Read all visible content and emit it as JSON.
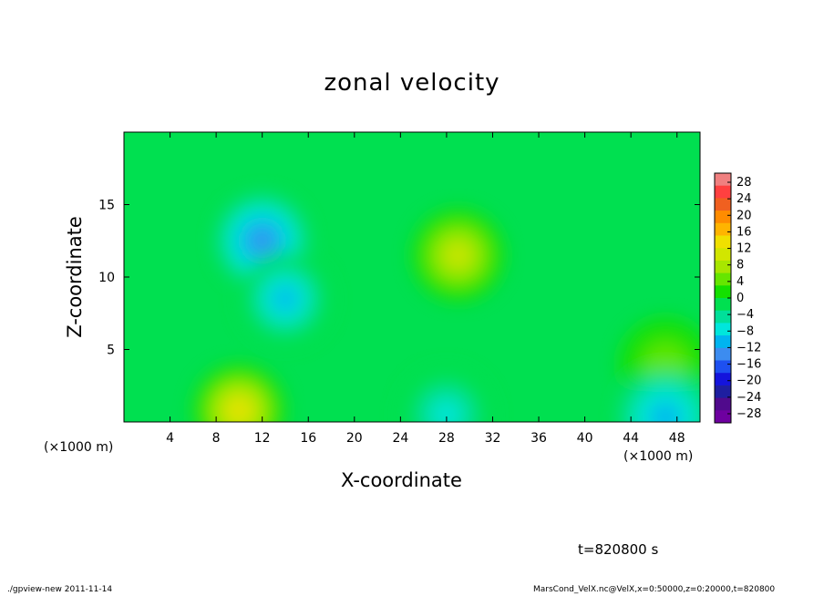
{
  "chart_data": {
    "type": "heatmap",
    "title": "zonal velocity",
    "xlabel": "X-coordinate",
    "ylabel": "Z-coordinate",
    "x_unit_label_left": "(×1000 m)",
    "x_unit_label_right": "(×1000 m)",
    "xlim": [
      0,
      50
    ],
    "ylim": [
      0,
      20
    ],
    "x_ticks": [
      4,
      8,
      12,
      16,
      20,
      24,
      28,
      32,
      36,
      40,
      44,
      48
    ],
    "y_ticks": [
      5,
      10,
      15
    ],
    "colorbar": {
      "ticks": [
        "28",
        "24",
        "20",
        "16",
        "12",
        "8",
        "4",
        "0",
        "−4",
        "−8",
        "−12",
        "−16",
        "−20",
        "−24",
        "−28"
      ],
      "range": [
        -30,
        30
      ],
      "bands": [
        "#f08080",
        "#ff4040",
        "#f06020",
        "#ff8c00",
        "#ffb400",
        "#f0e000",
        "#d2e600",
        "#a8e600",
        "#66e600",
        "#14e000",
        "#00e050",
        "#00e09a",
        "#00e6dc",
        "#00b4f0",
        "#3c8cf0",
        "#1e50f0",
        "#1414dc",
        "#1e1ea0",
        "#500a8c",
        "#6e00a0"
      ]
    },
    "features": [
      {
        "kind": "min",
        "x": 12,
        "z": 12.5,
        "value": -12
      },
      {
        "kind": "min",
        "x": 14,
        "z": 8.5,
        "value": -11
      },
      {
        "kind": "max",
        "x": 29,
        "z": 11.5,
        "value": 10
      },
      {
        "kind": "max",
        "x": 10,
        "z": 0.8,
        "value": 13
      },
      {
        "kind": "max",
        "x": 47,
        "z": 4,
        "value": 6
      },
      {
        "kind": "min",
        "x": 28,
        "z": 0.5,
        "value": -8
      },
      {
        "kind": "min",
        "x": 47,
        "z": 0.3,
        "value": -9
      }
    ],
    "background_value": 0,
    "grid": false,
    "legend_position": "right"
  },
  "time_label": "t=820800 s",
  "footer_left": "./gpview-new   2011-11-14",
  "footer_right": "MarsCond_VelX.nc@VelX,x=0:50000,z=0:20000,t=820800"
}
